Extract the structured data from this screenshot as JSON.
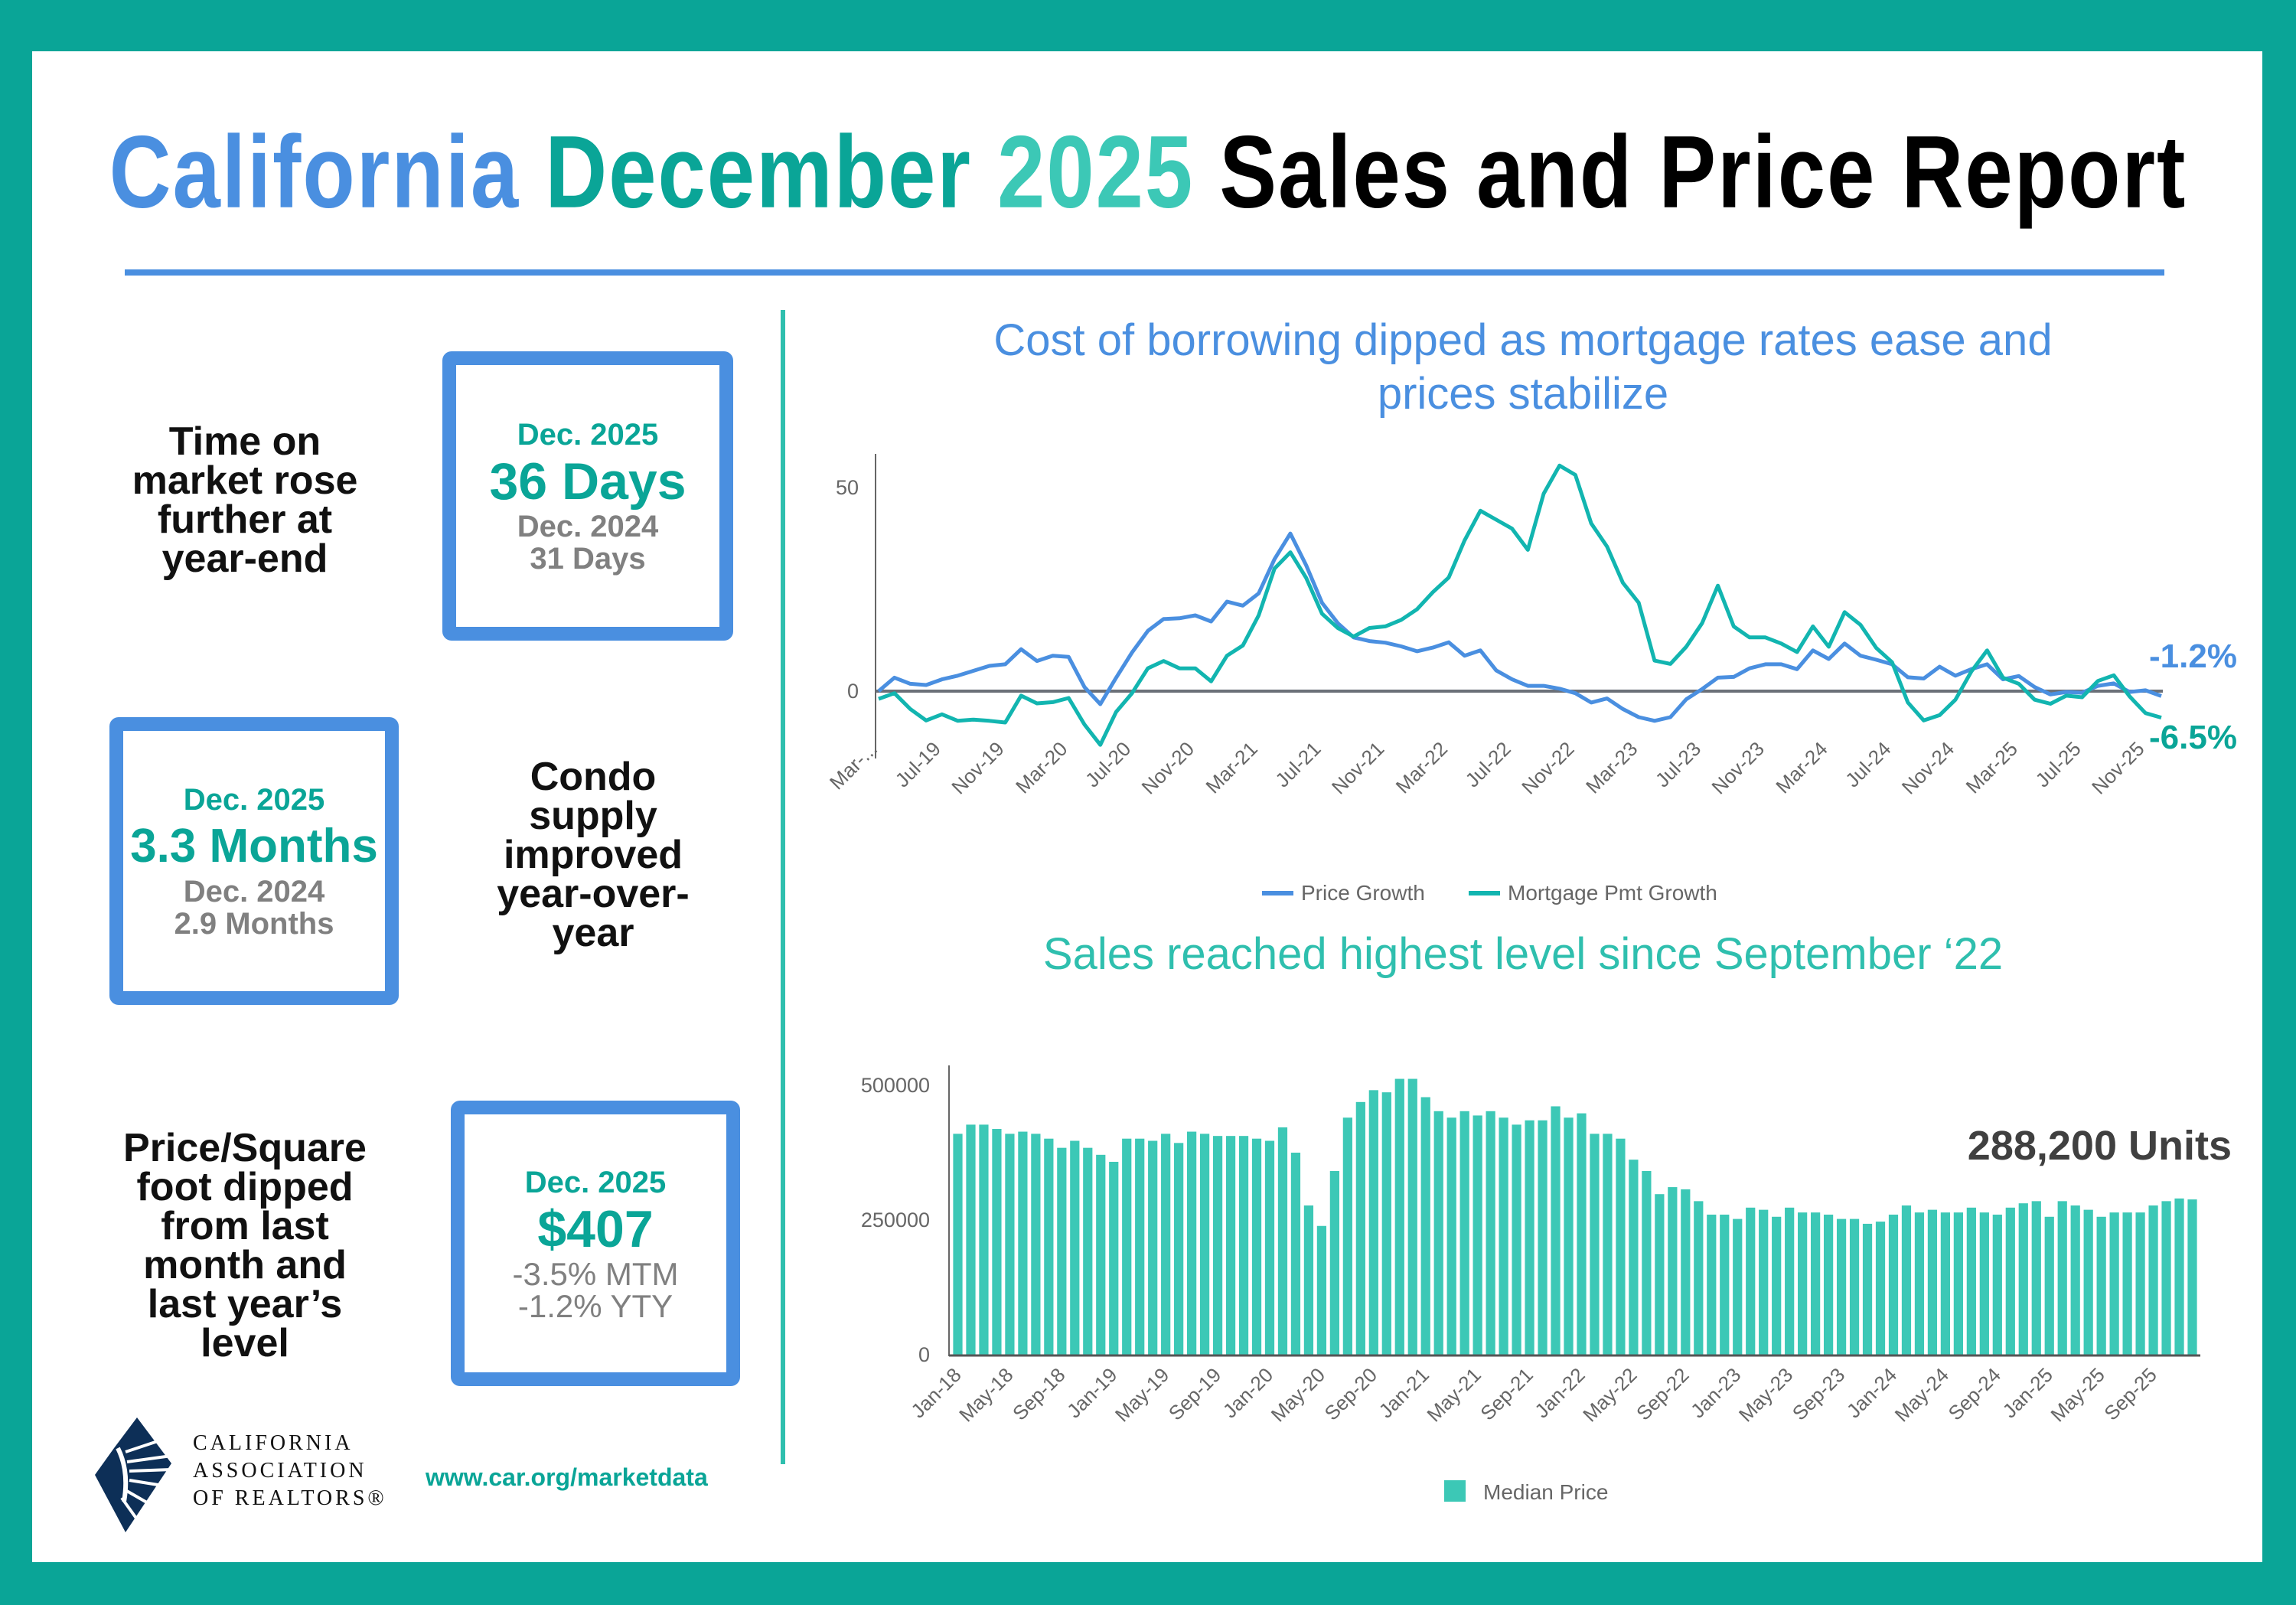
{
  "title": {
    "part1": "California",
    "part2": "December",
    "part3": "2025",
    "part4": "Sales and Price Report"
  },
  "colors": {
    "frame": "#0aa597",
    "blue": "#4a8fe0",
    "teal": "#0aa597",
    "bar": "#3cc8b6",
    "mortgage_line": "#12b5b0"
  },
  "left": {
    "time_on_market": {
      "text": [
        "Time on",
        "market rose",
        "further at",
        "year-end"
      ],
      "current_label": "Dec. 2025",
      "current_value": "36 Days",
      "prior_label": "Dec. 2024",
      "prior_value": "31 Days"
    },
    "condo_supply": {
      "text": [
        "Condo",
        "supply",
        "improved",
        "year-over-",
        "year"
      ],
      "current_label": "Dec. 2025",
      "current_value": "3.3 Months",
      "prior_label": "Dec. 2024",
      "prior_value": "2.9 Months"
    },
    "price_sqft": {
      "text": [
        "Price/Square",
        "foot dipped",
        "from last",
        "month and",
        "last year’s",
        "level"
      ],
      "current_label": "Dec. 2025",
      "current_value": "$407",
      "mtm": "-3.5% MTM",
      "yty": "-1.2% YTY"
    },
    "logo": {
      "lines": [
        "CALIFORNIA",
        "ASSOCIATION",
        "OF REALTORS®"
      ]
    },
    "url": "www.car.org/marketdata"
  },
  "chart_data": [
    {
      "type": "line",
      "title": "Cost of borrowing dipped as mortgage rates ease and prices stabilize",
      "title_lines": [
        "Cost of borrowing dipped as mortgage rates ease and",
        "prices stabilize"
      ],
      "x_start": "Mar-19",
      "x_end": "Dec-25",
      "x_frequency": "monthly",
      "x_tick_labels": [
        "Mar-...",
        "Jul-19",
        "Nov-19",
        "Mar-20",
        "Jul-20",
        "Nov-20",
        "Mar-21",
        "Jul-21",
        "Nov-21",
        "Mar-22",
        "Jul-22",
        "Nov-22",
        "Mar-23",
        "Jul-23",
        "Nov-23",
        "Mar-24",
        "Jul-24",
        "Nov-24",
        "Mar-25",
        "Jul-25",
        "Nov-25"
      ],
      "y_ticks": [
        0,
        50
      ],
      "y_tick_labels": [
        "0",
        "50"
      ],
      "ylim": [
        -16,
        60
      ],
      "grid": false,
      "legend": "bottom",
      "series": [
        {
          "name": "Price Growth",
          "color": "#4a8fe0",
          "end_label": "-1.2%",
          "values": [
            0,
            3.3,
            1.8,
            1.5,
            2.9,
            3.8,
            5,
            6.2,
            6.6,
            10.3,
            7.4,
            8.7,
            8.4,
            1,
            -3.2,
            3.3,
            9.5,
            14.8,
            17.7,
            17.9,
            18.6,
            17.1,
            22,
            21,
            24,
            32.4,
            38.7,
            30.9,
            21.7,
            16.7,
            13.2,
            12.3,
            11.9,
            11,
            9.8,
            10.7,
            12,
            8.7,
            10,
            5.1,
            2.9,
            1.3,
            1.3,
            0.6,
            -0.5,
            -2.8,
            -1.8,
            -4.4,
            -6.4,
            -7.3,
            -6.4,
            -2,
            0.5,
            3.3,
            3.5,
            5.6,
            6.6,
            6.6,
            5.4,
            10,
            7.9,
            11.7,
            8.7,
            7.7,
            6.6,
            3.4,
            3.1,
            6,
            3.8,
            5.4,
            6.6,
            2.9,
            3.7,
            1,
            -0.8,
            -0.2,
            -0.4,
            1.3,
            1.9,
            -0.2,
            0.2,
            -1.2
          ]
        },
        {
          "name": "Mortgage Pmt Growth",
          "color": "#12b5b0",
          "end_label": "-6.5%",
          "values": [
            -1.9,
            -0.5,
            -4.4,
            -7.2,
            -5.7,
            -7.3,
            -7,
            -7.3,
            -7.7,
            -1.1,
            -3,
            -2.7,
            -1.7,
            -8.2,
            -13.2,
            -5.1,
            -0.5,
            5.6,
            7.4,
            5.6,
            5.6,
            2.4,
            8.7,
            11.2,
            18.6,
            30.1,
            34.1,
            27.8,
            19,
            15.5,
            13.4,
            15.5,
            15.9,
            17.5,
            20.1,
            24.3,
            27.9,
            37,
            44.3,
            42.1,
            39.9,
            34.7,
            48.5,
            55.4,
            53.1,
            41.2,
            35.5,
            26.6,
            21.7,
            7.5,
            6.7,
            10.9,
            16.7,
            25.9,
            15.9,
            13.2,
            13.2,
            11.7,
            9.6,
            15.9,
            10.9,
            19.4,
            16.3,
            10.6,
            7.1,
            -2.8,
            -7.2,
            -5.9,
            -2.1,
            4.8,
            10,
            3.3,
            1.8,
            -2.1,
            -3.1,
            -1.1,
            -1.5,
            2.5,
            3.9,
            -1.3,
            -5.4,
            -6.5
          ]
        }
      ]
    },
    {
      "type": "bar",
      "title": "Sales reached highest level since September ‘22",
      "annotation": "288,200 Units",
      "x_start": "Jan-18",
      "x_end": "Dec-25",
      "x_frequency": "monthly",
      "x_tick_labels": [
        "Jan-18",
        "May-18",
        "Sep-18",
        "Jan-19",
        "May-19",
        "Sep-19",
        "Jan-20",
        "May-20",
        "Sep-20",
        "Jan-21",
        "May-21",
        "Sep-21",
        "Jan-22",
        "May-22",
        "Sep-22",
        "Jan-23",
        "May-23",
        "Sep-23",
        "Jan-24",
        "May-24",
        "Sep-24",
        "Jan-25",
        "May-25",
        "Sep-25"
      ],
      "y_ticks": [
        0,
        250000,
        500000
      ],
      "y_tick_labels": [
        "0",
        "250000",
        "500000"
      ],
      "ylim": [
        0,
        520000
      ],
      "grid": false,
      "legend": "bottom",
      "series": [
        {
          "name": "Median Price",
          "color": "#3cc8b6",
          "values": [
            410000,
            427000,
            427000,
            419000,
            410000,
            414000,
            410000,
            401000,
            384000,
            397000,
            384000,
            371000,
            358000,
            401000,
            401000,
            397000,
            410000,
            393000,
            414000,
            410000,
            406000,
            406000,
            406000,
            401000,
            397000,
            422000,
            375000,
            277000,
            239000,
            341000,
            440000,
            469000,
            491000,
            487000,
            512000,
            512000,
            478000,
            452000,
            440000,
            452000,
            444000,
            452000,
            440000,
            427000,
            435000,
            435000,
            461000,
            440000,
            448000,
            410000,
            410000,
            401000,
            362000,
            341000,
            298000,
            311000,
            307000,
            285000,
            260000,
            260000,
            252000,
            273000,
            269000,
            256000,
            273000,
            264000,
            264000,
            260000,
            252000,
            252000,
            243000,
            247000,
            260000,
            277000,
            264000,
            269000,
            264000,
            264000,
            273000,
            264000,
            260000,
            273000,
            281000,
            285000,
            256000,
            285000,
            277000,
            269000,
            256000,
            264000,
            264000,
            264000,
            277000,
            285000,
            290000,
            288200
          ]
        }
      ]
    }
  ]
}
